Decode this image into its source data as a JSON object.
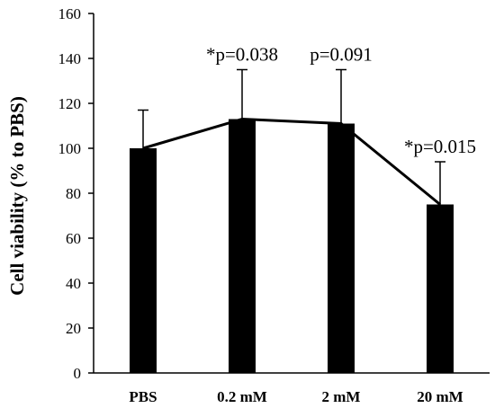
{
  "chart_data": {
    "type": "bar",
    "categories": [
      "PBS",
      "0.2 mM",
      "2 mM",
      "20 mM"
    ],
    "values": [
      100,
      113,
      111,
      75
    ],
    "error_upper": [
      117,
      135,
      135,
      94
    ],
    "annotations": [
      "",
      "*p=0.038",
      "p=0.091",
      "*p=0.015"
    ],
    "connecting_line": true,
    "ylabel": "Cell viability (% to PBS)",
    "ylim": [
      0,
      160
    ],
    "yticks": [
      0,
      20,
      40,
      60,
      80,
      100,
      120,
      140,
      160
    ],
    "grid": false,
    "bar_color": "#000000"
  }
}
